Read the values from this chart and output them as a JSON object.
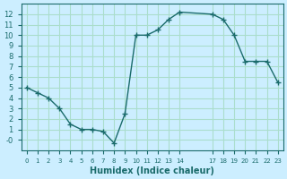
{
  "x": [
    0,
    1,
    2,
    3,
    4,
    5,
    6,
    7,
    8,
    9,
    10,
    11,
    12,
    13,
    14,
    17,
    18,
    19,
    20,
    21,
    22,
    23
  ],
  "y": [
    5,
    4.5,
    4,
    3,
    1.5,
    1,
    1,
    0.8,
    -0.3,
    2.5,
    10,
    10,
    10.5,
    11.5,
    12.2,
    12,
    11.5,
    10,
    7.5,
    7.5,
    7.5,
    5.5
  ],
  "line_color": "#1a6b6b",
  "marker": "+",
  "bg_color": "#cceeff",
  "grid_color": "#aaddcc",
  "xlabel": "Humidex (Indice chaleur)",
  "xlim": [
    -0.5,
    23.5
  ],
  "ylim": [
    -1,
    13
  ],
  "yticks": [
    0,
    1,
    2,
    3,
    4,
    5,
    6,
    7,
    8,
    9,
    10,
    11,
    12
  ],
  "ytick_labels": [
    "-0",
    "1",
    "2",
    "3",
    "4",
    "5",
    "6",
    "7",
    "8",
    "9",
    "10",
    "11",
    "12"
  ],
  "xtick_positions": [
    0,
    1,
    2,
    3,
    4,
    5,
    6,
    7,
    8,
    9,
    10,
    11,
    12,
    13,
    14,
    17,
    18,
    19,
    20,
    21,
    22,
    23
  ],
  "xtick_labels": [
    "0",
    "1",
    "2",
    "3",
    "4",
    "5",
    "6",
    "7",
    "8",
    "9",
    "10",
    "11",
    "12",
    "13",
    "14",
    "17",
    "18",
    "19",
    "20",
    "21",
    "22",
    "23"
  ]
}
